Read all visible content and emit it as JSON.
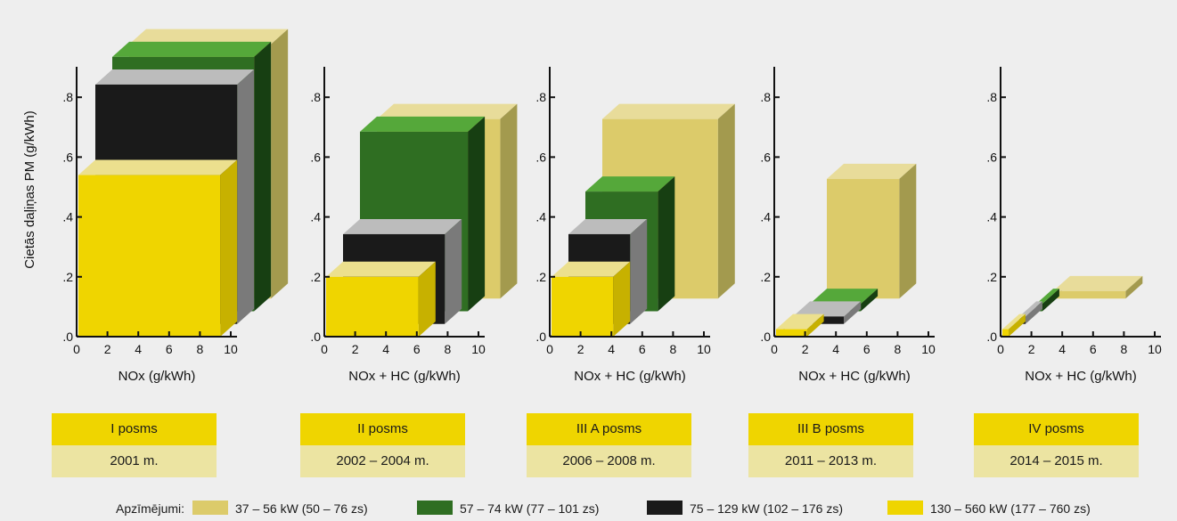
{
  "chart_data": {
    "type": "bar",
    "ylabel": "Cietās daļiņas PM (g/kWh)",
    "ylim": [
      0,
      0.9
    ],
    "y_ticks": [
      ".0",
      ".2",
      ".4",
      ".6",
      ".8"
    ],
    "x_ticks": [
      "0",
      "2",
      "4",
      "6",
      "8",
      "10"
    ],
    "xlim": [
      0,
      10
    ],
    "colors": {
      "37-56": "#dccb6a",
      "57-74": "#2f6e22",
      "75-129": "#1a1a1a",
      "130-560": "#efd500"
    },
    "legend": {
      "title": "Apzīmējumi:",
      "items": [
        {
          "key": "37-56",
          "label": "37 – 56 kW (50 – 76 zs)"
        },
        {
          "key": "57-74",
          "label": "57 – 74 kW (77 – 101 zs)"
        },
        {
          "key": "75-129",
          "label": "75 – 129 kW (102 – 176 zs)"
        },
        {
          "key": "130-560",
          "label": "130 – 560 kW (177 – 760 zs)"
        }
      ]
    },
    "panels": [
      {
        "stage": "I posms",
        "years": "2001 m.",
        "xlabel": "NOx (g/kWh)",
        "series": [
          {
            "key": "37-56",
            "x": 9.2,
            "y": 0.85
          },
          {
            "key": "57-74",
            "x": 9.2,
            "y": 0.85
          },
          {
            "key": "75-129",
            "x": 9.2,
            "y": 0.8
          },
          {
            "key": "130-560",
            "x": 9.2,
            "y": 0.54
          }
        ]
      },
      {
        "stage": "II posms",
        "years": "2002 – 2004 m.",
        "xlabel": "NOx + HC (g/kWh)",
        "series": [
          {
            "key": "37-56",
            "x": 8,
            "y": 0.6
          },
          {
            "key": "57-74",
            "x": 7,
            "y": 0.6
          },
          {
            "key": "75-129",
            "x": 6.6,
            "y": 0.3
          },
          {
            "key": "130-560",
            "x": 6,
            "y": 0.2
          }
        ]
      },
      {
        "stage": "III A posms",
        "years": "2006 – 2008 m.",
        "xlabel": "NOx + HC (g/kWh)",
        "series": [
          {
            "key": "37-56",
            "x": 7.5,
            "y": 0.6
          },
          {
            "key": "57-74",
            "x": 4.7,
            "y": 0.4
          },
          {
            "key": "75-129",
            "x": 4,
            "y": 0.3
          },
          {
            "key": "130-560",
            "x": 4,
            "y": 0.2
          }
        ]
      },
      {
        "stage": "III B posms",
        "years": "2011 – 2013 m.",
        "xlabel": "NOx + HC (g/kWh)",
        "series": [
          {
            "key": "37-56",
            "x": 4.7,
            "y": 0.4
          },
          {
            "key": "57-74",
            "x": 3.3,
            "y": 0.025
          },
          {
            "key": "75-129",
            "x": 3.3,
            "y": 0.025
          },
          {
            "key": "130-560",
            "x": 2,
            "y": 0.025
          }
        ]
      },
      {
        "stage": "IV posms",
        "years": "2014 – 2015 m.",
        "xlabel": "NOx + HC (g/kWh)",
        "series": [
          {
            "key": "37-56",
            "x": 4.7,
            "y": 0.025
          },
          {
            "key": "57-74",
            "x": 0.4,
            "y": 0.025
          },
          {
            "key": "75-129",
            "x": 0.4,
            "y": 0.025
          },
          {
            "key": "130-560",
            "x": 0.4,
            "y": 0.025
          }
        ]
      }
    ]
  }
}
